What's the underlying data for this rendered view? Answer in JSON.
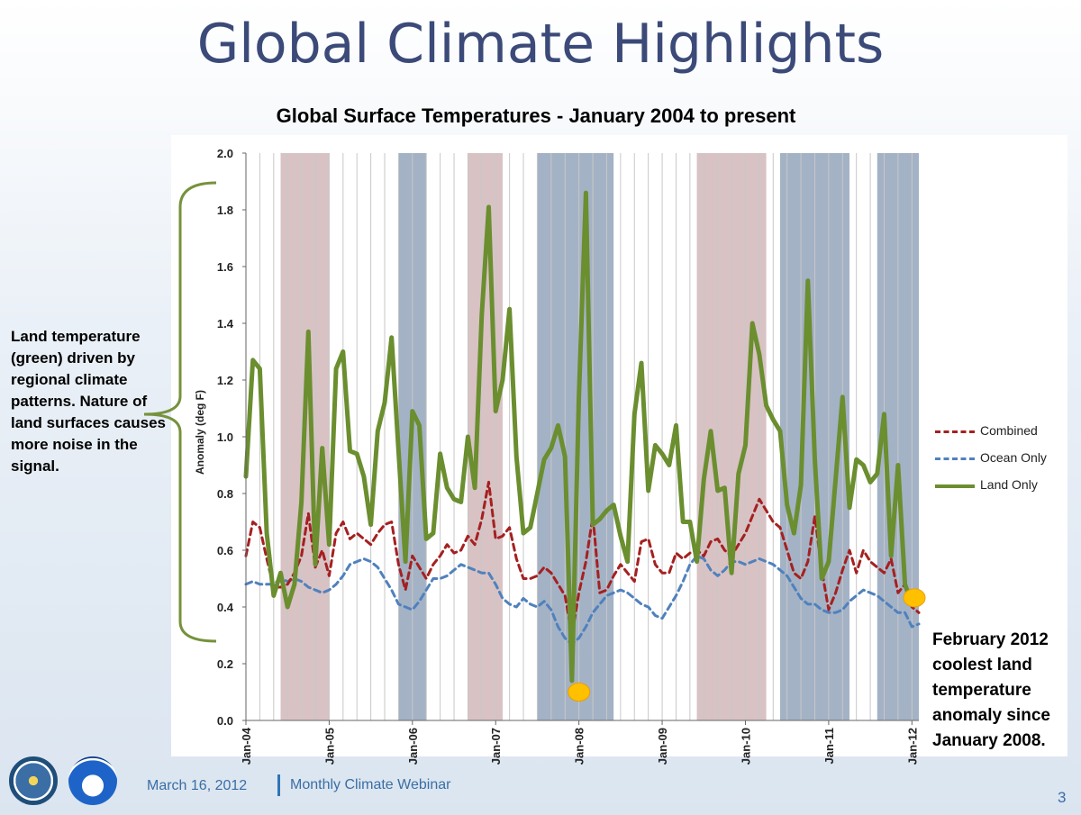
{
  "slide": {
    "title": "Global Climate Highlights",
    "date": "March 16, 2012",
    "webinar": "Monthly Climate Webinar",
    "page_number": "3"
  },
  "annotations": {
    "left_note": "Land temperature (green) driven by regional climate patterns. Nature of land surfaces causes more noise in the signal.",
    "right_note": "February 2012 coolest land temperature anomaly since January 2008."
  },
  "colors": {
    "combined": "#a52020",
    "ocean": "#4f81bd",
    "land": "#6b8e2f",
    "la_nina_band": "#5a7396",
    "el_nino_band": "#b88f94",
    "bracket": "#76923c",
    "marker": "#ffc000"
  },
  "chart_data": {
    "type": "line",
    "title": "Global Surface Temperatures  - January 2004 to present",
    "ylabel": "Anomaly (deg F)",
    "xlabel": "",
    "ylim": [
      0,
      2.0
    ],
    "yticks": [
      "0.0",
      "0.2",
      "0.4",
      "0.6",
      "0.8",
      "1.0",
      "1.2",
      "1.4",
      "1.6",
      "1.8",
      "2.0"
    ],
    "xtick_labels": [
      "Jan-04",
      "Jan-05",
      "Jan-06",
      "Jan-07",
      "Jan-08",
      "Jan-09",
      "Jan-10",
      "Jan-11",
      "Jan-12"
    ],
    "grid": "vertical monthly",
    "legend_position": "right",
    "x_start": "2004-01",
    "months": 98,
    "shaded_periods": [
      {
        "kind": "el-nino",
        "start": "2004-06",
        "end": "2005-01"
      },
      {
        "kind": "la-nina",
        "start": "2005-11",
        "end": "2006-03"
      },
      {
        "kind": "el-nino",
        "start": "2006-09",
        "end": "2007-02"
      },
      {
        "kind": "la-nina",
        "start": "2007-07",
        "end": "2008-06"
      },
      {
        "kind": "el-nino",
        "start": "2009-06",
        "end": "2010-04"
      },
      {
        "kind": "la-nina",
        "start": "2010-06",
        "end": "2011-04"
      },
      {
        "kind": "la-nina",
        "start": "2011-08",
        "end": "2012-02"
      }
    ],
    "series": [
      {
        "name": "Combined",
        "style": "dashed",
        "values": [
          0.58,
          0.7,
          0.68,
          0.57,
          0.47,
          0.47,
          0.48,
          0.52,
          0.58,
          0.73,
          0.54,
          0.6,
          0.51,
          0.66,
          0.7,
          0.64,
          0.66,
          0.64,
          0.62,
          0.66,
          0.69,
          0.7,
          0.55,
          0.46,
          0.58,
          0.54,
          0.5,
          0.55,
          0.58,
          0.62,
          0.59,
          0.6,
          0.65,
          0.62,
          0.71,
          0.84,
          0.64,
          0.65,
          0.68,
          0.57,
          0.5,
          0.5,
          0.51,
          0.54,
          0.52,
          0.48,
          0.44,
          0.3,
          0.45,
          0.56,
          0.72,
          0.45,
          0.46,
          0.51,
          0.55,
          0.52,
          0.49,
          0.63,
          0.64,
          0.55,
          0.52,
          0.52,
          0.59,
          0.57,
          0.59,
          0.6,
          0.58,
          0.63,
          0.64,
          0.6,
          0.58,
          0.62,
          0.66,
          0.72,
          0.78,
          0.74,
          0.7,
          0.68,
          0.6,
          0.52,
          0.5,
          0.56,
          0.72,
          0.53,
          0.39,
          0.45,
          0.53,
          0.6,
          0.52,
          0.6,
          0.56,
          0.54,
          0.52,
          0.57,
          0.45,
          0.48,
          0.4,
          0.38
        ]
      },
      {
        "name": "Ocean Only",
        "style": "dashed",
        "values": [
          0.48,
          0.49,
          0.48,
          0.48,
          0.48,
          0.5,
          0.49,
          0.5,
          0.49,
          0.47,
          0.46,
          0.45,
          0.46,
          0.48,
          0.51,
          0.55,
          0.56,
          0.57,
          0.56,
          0.54,
          0.5,
          0.46,
          0.41,
          0.4,
          0.39,
          0.42,
          0.46,
          0.5,
          0.5,
          0.51,
          0.53,
          0.55,
          0.54,
          0.53,
          0.52,
          0.52,
          0.48,
          0.43,
          0.41,
          0.4,
          0.43,
          0.41,
          0.4,
          0.42,
          0.39,
          0.33,
          0.29,
          0.27,
          0.29,
          0.33,
          0.38,
          0.41,
          0.44,
          0.45,
          0.46,
          0.45,
          0.43,
          0.41,
          0.4,
          0.37,
          0.36,
          0.4,
          0.44,
          0.49,
          0.55,
          0.58,
          0.57,
          0.53,
          0.51,
          0.53,
          0.56,
          0.56,
          0.55,
          0.56,
          0.57,
          0.56,
          0.55,
          0.53,
          0.51,
          0.47,
          0.43,
          0.41,
          0.41,
          0.39,
          0.38,
          0.38,
          0.39,
          0.42,
          0.44,
          0.46,
          0.45,
          0.44,
          0.42,
          0.4,
          0.38,
          0.38,
          0.33,
          0.34
        ]
      },
      {
        "name": "Land Only",
        "style": "solid",
        "values": [
          0.86,
          1.27,
          1.24,
          0.66,
          0.44,
          0.52,
          0.4,
          0.48,
          0.77,
          1.37,
          0.55,
          0.96,
          0.62,
          1.24,
          1.3,
          0.95,
          0.94,
          0.86,
          0.69,
          1.02,
          1.12,
          1.35,
          0.95,
          0.56,
          1.09,
          1.04,
          0.64,
          0.66,
          0.94,
          0.82,
          0.78,
          0.77,
          1.0,
          0.82,
          1.43,
          1.81,
          1.09,
          1.2,
          1.45,
          0.93,
          0.66,
          0.68,
          0.8,
          0.92,
          0.96,
          1.04,
          0.93,
          0.14,
          1.14,
          1.86,
          0.69,
          0.71,
          0.74,
          0.76,
          0.65,
          0.56,
          1.08,
          1.26,
          0.81,
          0.97,
          0.94,
          0.9,
          1.04,
          0.7,
          0.7,
          0.56,
          0.85,
          1.02,
          0.81,
          0.82,
          0.52,
          0.87,
          0.97,
          1.4,
          1.29,
          1.11,
          1.06,
          1.02,
          0.76,
          0.66,
          0.83,
          1.55,
          0.92,
          0.5,
          0.56,
          0.85,
          1.14,
          0.75,
          0.92,
          0.9,
          0.84,
          0.87,
          1.08,
          0.58,
          0.9,
          0.48,
          0.41,
          0.41
        ]
      }
    ]
  }
}
